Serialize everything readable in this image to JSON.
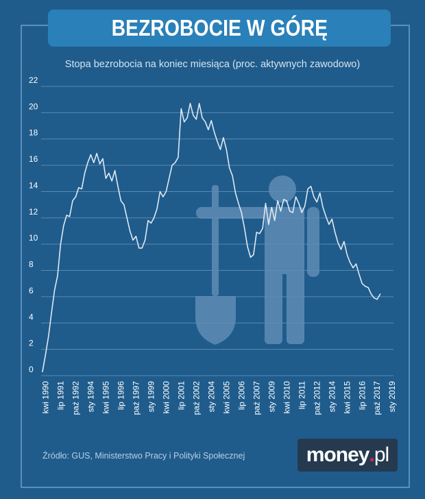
{
  "header": {
    "title": "BEZROBOCIE W GÓRĘ",
    "subtitle": "Stopa bezrobocia na koniec miesiąca (proc. aktywnych zawodowo)"
  },
  "footer": {
    "source": "Źródło: GUS, Ministerstwo Pracy i Polityki Społecznej",
    "logo_main": "money",
    "logo_dot": ".",
    "logo_tld": "pl"
  },
  "colors": {
    "background": "#1f5c8c",
    "line": "#dfe9f2",
    "grid": "#5a89b2",
    "pictogram": "#5f8db5"
  },
  "chart_data": {
    "type": "line",
    "title": "",
    "xlabel": "",
    "ylabel": "",
    "ylim": [
      0,
      22
    ],
    "yticks": [
      0,
      2,
      4,
      6,
      8,
      10,
      12,
      14,
      16,
      18,
      20,
      22
    ],
    "grid": true,
    "decoration": "man-with-shovel pictogram",
    "xticks": [
      {
        "t": 1990.25,
        "label": "kwi 1990"
      },
      {
        "t": 1991.5,
        "label": "lip 1991"
      },
      {
        "t": 1992.75,
        "label": "paź 1992"
      },
      {
        "t": 1994.0,
        "label": "sty 1994"
      },
      {
        "t": 1995.25,
        "label": "kwi 1995"
      },
      {
        "t": 1996.5,
        "label": "lip 1996"
      },
      {
        "t": 1997.75,
        "label": "paź 1997"
      },
      {
        "t": 1999.0,
        "label": "sty 1999"
      },
      {
        "t": 2000.25,
        "label": "kwi 2000"
      },
      {
        "t": 2001.5,
        "label": "lip 2001"
      },
      {
        "t": 2002.75,
        "label": "paź 2002"
      },
      {
        "t": 2004.0,
        "label": "sty 2004"
      },
      {
        "t": 2005.25,
        "label": "kwi 2005"
      },
      {
        "t": 2006.5,
        "label": "lip 2006"
      },
      {
        "t": 2007.75,
        "label": "paź 2007"
      },
      {
        "t": 2009.0,
        "label": "sty 2009"
      },
      {
        "t": 2010.25,
        "label": "kwi 2010"
      },
      {
        "t": 2011.5,
        "label": "lip 2011"
      },
      {
        "t": 2012.75,
        "label": "paź 2012"
      },
      {
        "t": 2014.0,
        "label": "sty 2014"
      },
      {
        "t": 2015.25,
        "label": "kwi 2015"
      },
      {
        "t": 2016.5,
        "label": "lip 2016"
      },
      {
        "t": 2017.75,
        "label": "paź 2017"
      },
      {
        "t": 2019.0,
        "label": "sty 2019"
      }
    ],
    "series": [
      {
        "points": [
          [
            1990.0,
            0.3
          ],
          [
            1990.25,
            1.6
          ],
          [
            1990.5,
            3.0
          ],
          [
            1990.75,
            4.8
          ],
          [
            1991.0,
            6.5
          ],
          [
            1991.25,
            7.6
          ],
          [
            1991.5,
            10.0
          ],
          [
            1991.75,
            11.4
          ],
          [
            1992.0,
            12.2
          ],
          [
            1992.25,
            12.1
          ],
          [
            1992.5,
            13.3
          ],
          [
            1992.75,
            13.6
          ],
          [
            1993.0,
            14.3
          ],
          [
            1993.25,
            14.2
          ],
          [
            1993.5,
            15.4
          ],
          [
            1993.75,
            16.2
          ],
          [
            1994.0,
            16.8
          ],
          [
            1994.25,
            16.2
          ],
          [
            1994.5,
            16.9
          ],
          [
            1994.75,
            16.1
          ],
          [
            1995.0,
            16.5
          ],
          [
            1995.25,
            15.0
          ],
          [
            1995.5,
            15.4
          ],
          [
            1995.75,
            14.8
          ],
          [
            1996.0,
            15.6
          ],
          [
            1996.25,
            14.4
          ],
          [
            1996.5,
            13.3
          ],
          [
            1996.75,
            13.0
          ],
          [
            1997.0,
            12.0
          ],
          [
            1997.25,
            11.0
          ],
          [
            1997.5,
            10.3
          ],
          [
            1997.75,
            10.6
          ],
          [
            1998.0,
            9.7
          ],
          [
            1998.25,
            9.7
          ],
          [
            1998.5,
            10.3
          ],
          [
            1998.75,
            11.8
          ],
          [
            1999.0,
            11.6
          ],
          [
            1999.25,
            12.0
          ],
          [
            1999.5,
            12.7
          ],
          [
            1999.75,
            14.0
          ],
          [
            2000.0,
            13.6
          ],
          [
            2000.25,
            14.0
          ],
          [
            2000.5,
            15.0
          ],
          [
            2000.75,
            16.0
          ],
          [
            2001.0,
            16.2
          ],
          [
            2001.25,
            16.6
          ],
          [
            2001.5,
            20.3
          ],
          [
            2001.75,
            19.3
          ],
          [
            2002.0,
            19.6
          ],
          [
            2002.25,
            20.7
          ],
          [
            2002.5,
            19.8
          ],
          [
            2002.75,
            19.5
          ],
          [
            2003.0,
            20.7
          ],
          [
            2003.25,
            19.6
          ],
          [
            2003.5,
            19.3
          ],
          [
            2003.75,
            18.7
          ],
          [
            2004.0,
            19.4
          ],
          [
            2004.25,
            18.5
          ],
          [
            2004.5,
            17.8
          ],
          [
            2004.75,
            17.2
          ],
          [
            2005.0,
            18.1
          ],
          [
            2005.25,
            17.2
          ],
          [
            2005.5,
            15.8
          ],
          [
            2005.75,
            15.2
          ],
          [
            2006.0,
            13.9
          ],
          [
            2006.25,
            13.1
          ],
          [
            2006.5,
            12.4
          ],
          [
            2006.75,
            11.2
          ],
          [
            2007.0,
            9.8
          ],
          [
            2007.25,
            9.0
          ],
          [
            2007.5,
            9.2
          ],
          [
            2007.75,
            10.9
          ],
          [
            2008.0,
            10.8
          ],
          [
            2008.25,
            11.2
          ],
          [
            2008.5,
            13.1
          ],
          [
            2008.75,
            11.5
          ],
          [
            2009.0,
            12.8
          ],
          [
            2009.25,
            11.8
          ],
          [
            2009.5,
            13.3
          ],
          [
            2009.75,
            12.5
          ],
          [
            2010.0,
            13.4
          ],
          [
            2010.25,
            13.3
          ],
          [
            2010.5,
            12.5
          ],
          [
            2010.75,
            12.4
          ],
          [
            2011.0,
            13.6
          ],
          [
            2011.25,
            13.1
          ],
          [
            2011.5,
            12.4
          ],
          [
            2011.75,
            12.9
          ],
          [
            2012.0,
            14.2
          ],
          [
            2012.25,
            14.4
          ],
          [
            2012.5,
            13.6
          ],
          [
            2012.75,
            13.2
          ],
          [
            2013.0,
            13.9
          ],
          [
            2013.25,
            12.8
          ],
          [
            2013.5,
            12.1
          ],
          [
            2013.75,
            11.5
          ],
          [
            2014.0,
            11.9
          ],
          [
            2014.25,
            10.9
          ],
          [
            2014.5,
            10.1
          ],
          [
            2014.75,
            9.6
          ],
          [
            2015.0,
            10.2
          ],
          [
            2015.25,
            9.2
          ],
          [
            2015.5,
            8.6
          ],
          [
            2015.75,
            8.2
          ],
          [
            2016.0,
            8.5
          ],
          [
            2016.25,
            7.7
          ],
          [
            2016.5,
            7.0
          ],
          [
            2016.75,
            6.8
          ],
          [
            2017.0,
            6.7
          ],
          [
            2017.25,
            6.2
          ],
          [
            2017.5,
            5.9
          ],
          [
            2017.75,
            5.8
          ],
          [
            2018.0,
            6.2
          ]
        ]
      }
    ]
  }
}
